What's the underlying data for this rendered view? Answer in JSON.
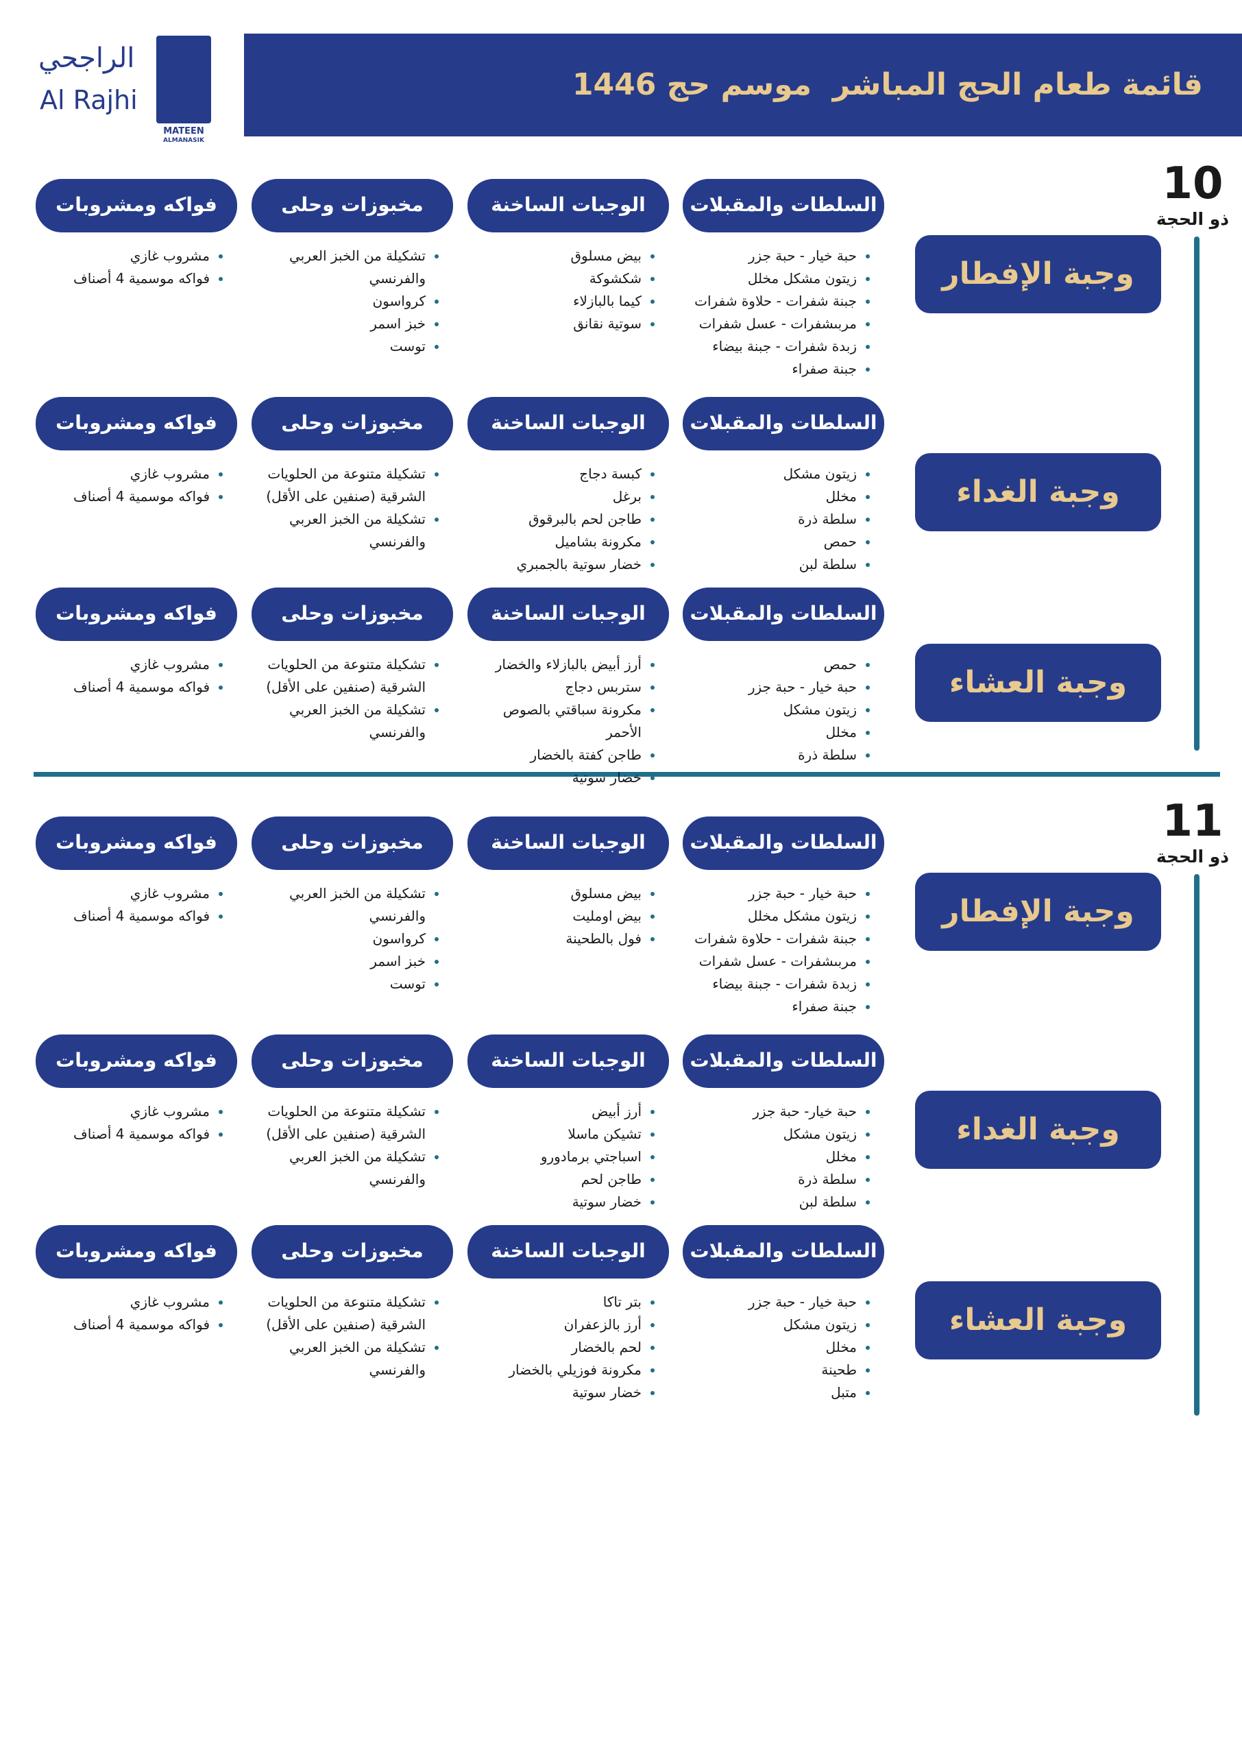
{
  "logo": {
    "arabic": "الراجحي",
    "latin": "Al Rajhi",
    "sub1": "MATEEN",
    "sub2": "ALMANASIK"
  },
  "header": {
    "title": "قائمة طعام الحج المباشر  موسم حج 1446"
  },
  "days": [
    {
      "number": "10",
      "month": "ذو الحجة",
      "meals": [
        {
          "name": "وجبة الإفطار",
          "columns": [
            {
              "title": "السلطات والمقبلات",
              "items": [
                "حبة خيار - حبة جزر",
                "زيتون مشكل مخلل",
                "جبنة شفرات - حلاوة شفرات",
                "مربىشفرات - عسل شفرات",
                "زبدة شفرات - جبنة بيضاء",
                "جبنة صفراء"
              ]
            },
            {
              "title": "الوجبات الساخنة",
              "items": [
                "بيض مسلوق",
                "شكشوكة",
                "كيما بالبازلاء",
                "سوتية نقانق"
              ]
            },
            {
              "title": "مخبوزات وحلى",
              "items": [
                "تشكيلة من الخبز العربي والفرنسي",
                "كرواسون",
                "خبز اسمر",
                "توست"
              ]
            },
            {
              "title": "فواكه ومشروبات",
              "items": [
                "مشروب غازي",
                "فواكه موسمية 4 أصناف"
              ]
            }
          ]
        },
        {
          "name": "وجبة الغداء",
          "columns": [
            {
              "title": "السلطات والمقبلات",
              "items": [
                "زيتون مشكل",
                "مخلل",
                "سلطة ذرة",
                "حمص",
                "سلطة لبن"
              ]
            },
            {
              "title": "الوجبات الساخنة",
              "items": [
                "كبسة دجاج",
                "برغل",
                "طاجن لحم بالبرقوق",
                "مكرونة بشاميل",
                "خضار سوتية بالجمبري"
              ]
            },
            {
              "title": "مخبوزات وحلى",
              "items": [
                "تشكيلة متنوعة من الحلويات الشرقية (صنفين على الأقل)",
                "تشكيلة من الخبز العربي والفرنسي"
              ]
            },
            {
              "title": "فواكه ومشروبات",
              "items": [
                "مشروب غازي",
                "فواكه موسمية 4 أصناف"
              ]
            }
          ]
        },
        {
          "name": "وجبة العشاء",
          "columns": [
            {
              "title": "السلطات والمقبلات",
              "items": [
                "حمص",
                "حبة خيار - حبة جزر",
                "زيتون مشكل",
                "مخلل",
                "سلطة ذرة"
              ]
            },
            {
              "title": "الوجبات الساخنة",
              "items": [
                "أرز أبيض بالبازلاء والخضار",
                "ستربس دجاج",
                "مكرونة سباقتي بالصوص الأحمر",
                "طاجن كفتة بالخضار",
                "خضار سوتية"
              ]
            },
            {
              "title": "مخبوزات وحلى",
              "items": [
                "تشكيلة متنوعة من الحلويات الشرقية (صنفين على الأقل)",
                "تشكيلة من الخبز العربي والفرنسي"
              ]
            },
            {
              "title": "فواكه ومشروبات",
              "items": [
                "مشروب غازي",
                "فواكه موسمية 4 أصناف"
              ]
            }
          ]
        }
      ]
    },
    {
      "number": "11",
      "month": "ذو الحجة",
      "meals": [
        {
          "name": "وجبة الإفطار",
          "columns": [
            {
              "title": "السلطات والمقبلات",
              "items": [
                "حبة خيار - حبة جزر",
                "زيتون مشكل مخلل",
                "جبنة شفرات - حلاوة شفرات",
                "مربىشفرات - عسل شفرات",
                "زبدة شفرات - جبنة بيضاء",
                "جبنة صفراء"
              ]
            },
            {
              "title": "الوجبات الساخنة",
              "items": [
                "بيض مسلوق",
                "بيض اومليت",
                "فول بالطحينة"
              ]
            },
            {
              "title": "مخبوزات وحلى",
              "items": [
                "تشكيلة من الخبز العربي والفرنسي",
                "كرواسون",
                "خبز اسمر",
                "توست"
              ]
            },
            {
              "title": "فواكه ومشروبات",
              "items": [
                "مشروب غازي",
                "فواكه موسمية 4 أصناف"
              ]
            }
          ]
        },
        {
          "name": "وجبة الغداء",
          "columns": [
            {
              "title": "السلطات والمقبلات",
              "items": [
                "حبة خيار- حبة جزر",
                "زيتون مشكل",
                "مخلل",
                "سلطة ذرة",
                "سلطة لبن"
              ]
            },
            {
              "title": "الوجبات الساخنة",
              "items": [
                "أرز أبيض",
                "تشيكن ماسلا",
                "اسباجتي برمادورو",
                "طاجن لحم",
                "خضار سوتية"
              ]
            },
            {
              "title": "مخبوزات وحلى",
              "items": [
                "تشكيلة متنوعة من الحلويات الشرقية (صنفين على الأقل)",
                "تشكيلة من الخبز العربي والفرنسي"
              ]
            },
            {
              "title": "فواكه ومشروبات",
              "items": [
                "مشروب غازي",
                "فواكه موسمية 4 أصناف"
              ]
            }
          ]
        },
        {
          "name": "وجبة العشاء",
          "columns": [
            {
              "title": "السلطات والمقبلات",
              "items": [
                "حبة خيار - حبة جزر",
                "زيتون مشكل",
                "مخلل",
                "طحينة",
                "متبل"
              ]
            },
            {
              "title": "الوجبات الساخنة",
              "items": [
                "بتر تاكا",
                "أرز بالزعفران",
                "لحم بالخضار",
                "مكرونة فوزيلي بالخضار",
                "خضار سوتية"
              ]
            },
            {
              "title": "مخبوزات وحلى",
              "items": [
                "تشكيلة متنوعة من الحلويات الشرقية (صنفين على الأقل)",
                "تشكيلة من الخبز العربي والفرنسي"
              ]
            },
            {
              "title": "فواكه ومشروبات",
              "items": [
                "مشروب غازي",
                "فواكه موسمية 4 أصناف"
              ]
            }
          ]
        }
      ]
    }
  ]
}
